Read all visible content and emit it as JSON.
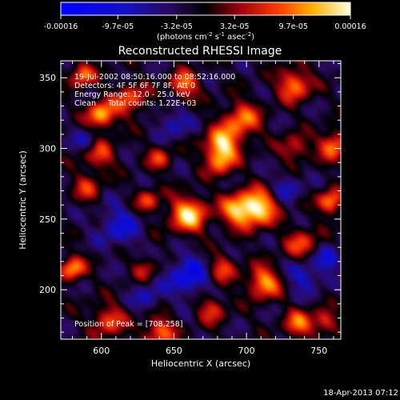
{
  "chart_data": {
    "type": "heatmap",
    "title": "Reconstructed RHESSI Image",
    "xlabel": "Heliocentric X (arcsec)",
    "ylabel": "Heliocentric Y (arcsec)",
    "xlim": [
      572,
      765
    ],
    "ylim": [
      165,
      362
    ],
    "x_ticks": [
      600,
      650,
      700,
      750
    ],
    "y_ticks": [
      200,
      250,
      300,
      350
    ],
    "colorbar": {
      "tick_labels": [
        "-0.00016",
        "-9.7e-05",
        "-3.2e-05",
        "3.2e-05",
        "9.7e-05",
        "0.00016"
      ],
      "tick_values": [
        -0.00016,
        -9.7e-05,
        -3.2e-05,
        3.2e-05,
        9.7e-05,
        0.00016
      ],
      "range": [
        -0.00016,
        0.00016
      ],
      "unit_base": "(photons cm",
      "unit_exp1": "-2",
      "unit_mid": " s",
      "unit_exp2": "-1",
      "unit_mid2": " asec",
      "unit_exp3": "-2",
      "unit_end": ")"
    },
    "info_lines": [
      "19-Jul-2002 08:50:16.000 to 08:52:16.000",
      "Detectors: 4F 5F 6F 7F 8F, Att 0",
      "Energy Range: 12.0 - 25.0 keV",
      "Clean     Total counts: 1.22E+03"
    ],
    "peak_label": "Position of Peak = [708,258]",
    "peak": [
      708,
      258
    ],
    "blobs": [
      {
        "x": 708,
        "y": 258,
        "amp": 1.0,
        "s": 9
      },
      {
        "x": 693,
        "y": 256,
        "amp": 0.75,
        "s": 8
      },
      {
        "x": 660,
        "y": 253,
        "amp": 0.95,
        "s": 9
      },
      {
        "x": 683,
        "y": 303,
        "amp": 0.9,
        "s": 8
      },
      {
        "x": 682,
        "y": 290,
        "amp": 0.6,
        "s": 7
      },
      {
        "x": 697,
        "y": 320,
        "amp": 0.7,
        "s": 9
      },
      {
        "x": 600,
        "y": 324,
        "amp": 0.85,
        "s": 7
      },
      {
        "x": 620,
        "y": 335,
        "amp": 0.6,
        "s": 8
      },
      {
        "x": 587,
        "y": 352,
        "amp": 0.7,
        "s": 6
      },
      {
        "x": 598,
        "y": 296,
        "amp": 0.55,
        "s": 8
      },
      {
        "x": 632,
        "y": 263,
        "amp": 0.55,
        "s": 6
      },
      {
        "x": 640,
        "y": 293,
        "amp": 0.5,
        "s": 6
      },
      {
        "x": 657,
        "y": 345,
        "amp": 0.7,
        "s": 7
      },
      {
        "x": 733,
        "y": 345,
        "amp": 0.75,
        "s": 8
      },
      {
        "x": 760,
        "y": 302,
        "amp": 0.75,
        "s": 7
      },
      {
        "x": 733,
        "y": 300,
        "amp": 0.5,
        "s": 7
      },
      {
        "x": 758,
        "y": 262,
        "amp": 0.8,
        "s": 6
      },
      {
        "x": 738,
        "y": 232,
        "amp": 0.55,
        "s": 8
      },
      {
        "x": 712,
        "y": 205,
        "amp": 0.8,
        "s": 8
      },
      {
        "x": 736,
        "y": 176,
        "amp": 0.65,
        "s": 7
      },
      {
        "x": 754,
        "y": 177,
        "amp": 0.55,
        "s": 6
      },
      {
        "x": 683,
        "y": 215,
        "amp": 0.55,
        "s": 7
      },
      {
        "x": 676,
        "y": 186,
        "amp": 0.5,
        "s": 7
      },
      {
        "x": 640,
        "y": 170,
        "amp": 0.65,
        "s": 8
      },
      {
        "x": 605,
        "y": 178,
        "amp": 0.6,
        "s": 8
      },
      {
        "x": 580,
        "y": 215,
        "amp": 0.8,
        "s": 6
      },
      {
        "x": 590,
        "y": 272,
        "amp": 0.45,
        "s": 7
      },
      {
        "x": 630,
        "y": 215,
        "amp": 0.4,
        "s": 6
      },
      {
        "x": 660,
        "y": 210,
        "amp": -0.6,
        "s": 10
      },
      {
        "x": 612,
        "y": 245,
        "amp": -0.45,
        "s": 10
      },
      {
        "x": 740,
        "y": 210,
        "amp": -0.45,
        "s": 8
      },
      {
        "x": 757,
        "y": 222,
        "amp": -0.5,
        "s": 6
      },
      {
        "x": 590,
        "y": 305,
        "amp": -0.4,
        "s": 6
      },
      {
        "x": 650,
        "y": 318,
        "amp": -0.4,
        "s": 7
      },
      {
        "x": 728,
        "y": 272,
        "amp": -0.35,
        "s": 7
      },
      {
        "x": 632,
        "y": 195,
        "amp": -0.35,
        "s": 7
      }
    ]
  },
  "timestamp": "18-Apr-2013 07:12"
}
